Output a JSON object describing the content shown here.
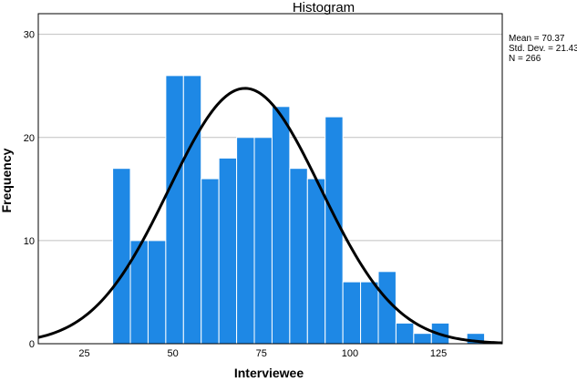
{
  "chart_data": {
    "type": "histogram",
    "title": "Histogram",
    "xlabel": "Interviewee",
    "ylabel": "Frequency",
    "xlim": [
      12,
      143
    ],
    "ylim": [
      0,
      32
    ],
    "x_ticks": [
      25,
      50,
      75,
      100,
      125
    ],
    "y_ticks": [
      0,
      10,
      20,
      30
    ],
    "grid": "horizontal",
    "bin_width": 5,
    "bins": [
      {
        "start": 33,
        "end": 38,
        "count": 17
      },
      {
        "start": 38,
        "end": 43,
        "count": 10
      },
      {
        "start": 43,
        "end": 48,
        "count": 10
      },
      {
        "start": 48,
        "end": 53,
        "count": 26
      },
      {
        "start": 53,
        "end": 58,
        "count": 26
      },
      {
        "start": 58,
        "end": 63,
        "count": 16
      },
      {
        "start": 63,
        "end": 68,
        "count": 18
      },
      {
        "start": 68,
        "end": 73,
        "count": 20
      },
      {
        "start": 73,
        "end": 78,
        "count": 20
      },
      {
        "start": 78,
        "end": 83,
        "count": 23
      },
      {
        "start": 83,
        "end": 88,
        "count": 17
      },
      {
        "start": 88,
        "end": 93,
        "count": 16
      },
      {
        "start": 93,
        "end": 98,
        "count": 22
      },
      {
        "start": 98,
        "end": 103,
        "count": 6
      },
      {
        "start": 103,
        "end": 108,
        "count": 6
      },
      {
        "start": 108,
        "end": 113,
        "count": 7
      },
      {
        "start": 113,
        "end": 118,
        "count": 2
      },
      {
        "start": 118,
        "end": 123,
        "count": 1
      },
      {
        "start": 123,
        "end": 128,
        "count": 2
      },
      {
        "start": 128,
        "end": 133,
        "count": 0
      },
      {
        "start": 133,
        "end": 138,
        "count": 1
      }
    ],
    "normal_curve": {
      "mean": 70.37,
      "std_dev": 21.43,
      "n": 266
    },
    "legend_position": "top-right",
    "stats_text": [
      "Mean = 70.37",
      "Std. Dev. = 21.43",
      "N = 266"
    ],
    "bar_color": "#1e88e5",
    "bar_edge_color": "#ffffff",
    "curve_color": "#000000",
    "grid_color": "#c0c0c0"
  }
}
